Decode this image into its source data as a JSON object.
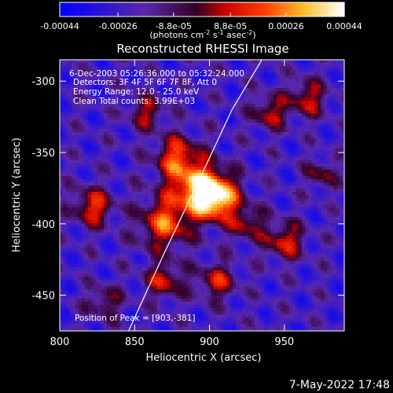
{
  "chart_data": {
    "type": "heatmap",
    "title": "Reconstructed RHESSI Image",
    "xlabel": "Heliocentric X (arcsec)",
    "ylabel": "Heliocentric Y (arcsec)",
    "xlim": [
      800,
      990
    ],
    "ylim": [
      -475,
      -285
    ],
    "xticks": [
      "800",
      "850",
      "900",
      "950"
    ],
    "xtick_values": [
      800,
      850,
      900,
      950
    ],
    "yticks": [
      "-300",
      "-350",
      "-400",
      "-450"
    ],
    "ytick_values": [
      -300,
      -350,
      -400,
      -450
    ],
    "colorbar": {
      "ticks": [
        "-0.00044",
        "-0.00026",
        "-8.8e-05",
        "8.8e-05",
        "0.00026",
        "0.00044"
      ],
      "tick_values": [
        -0.00044,
        -0.00026,
        -8.8e-05,
        8.8e-05,
        0.00026,
        0.00044
      ],
      "range": [
        -0.00044,
        0.00044
      ],
      "unit_label": "(photons cm^-2 s^-1 asec^-2)"
    },
    "annotations": [
      "6-Dec-2003 05:26:36.000 to 05:32:24.000",
      "Detectors: 3F 4F 5F 6F 7F 8F, Att 0",
      "Energy Range: 12.0 - 25.0 keV",
      "Clean     Total counts: 3.99E+03",
      "Position of Peak = [903,-381]"
    ],
    "peak": [
      903,
      -381
    ],
    "sources": [
      {
        "x": 903,
        "y": -381,
        "amp": 1.0,
        "sigma": 11
      },
      {
        "x": 888,
        "y": -372,
        "amp": 0.55,
        "sigma": 13
      },
      {
        "x": 870,
        "y": -400,
        "amp": 0.6,
        "sigma": 12
      },
      {
        "x": 878,
        "y": -352,
        "amp": 0.5,
        "sigma": 10
      },
      {
        "x": 822,
        "y": -388,
        "amp": 0.55,
        "sigma": 9
      },
      {
        "x": 858,
        "y": -322,
        "amp": 0.4,
        "sigma": 8
      },
      {
        "x": 940,
        "y": -322,
        "amp": 0.45,
        "sigma": 8
      },
      {
        "x": 965,
        "y": -312,
        "amp": 0.45,
        "sigma": 9
      },
      {
        "x": 950,
        "y": -412,
        "amp": 0.5,
        "sigma": 9
      },
      {
        "x": 905,
        "y": -440,
        "amp": 0.45,
        "sigma": 9
      },
      {
        "x": 870,
        "y": -440,
        "amp": 0.45,
        "sigma": 9
      },
      {
        "x": 925,
        "y": -400,
        "amp": 0.4,
        "sigma": 8
      },
      {
        "x": 830,
        "y": -455,
        "amp": 0.35,
        "sigma": 8
      },
      {
        "x": 975,
        "y": -365,
        "amp": 0.35,
        "sigma": 7
      }
    ],
    "limb": {
      "x": [
        846,
        870,
        895,
        915,
        935
      ],
      "y": [
        -475,
        -420,
        -365,
        -320,
        -285
      ]
    }
  },
  "footer": {
    "timestamp": "7-May-2022 17:48"
  }
}
